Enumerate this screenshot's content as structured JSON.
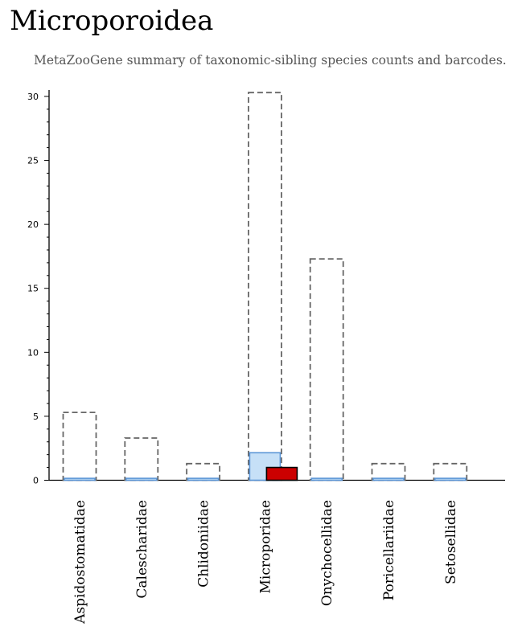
{
  "page": {
    "title": "Microporoidea",
    "subtitle": "MetaZooGene summary of taxonomic-sibling species counts and barcodes."
  },
  "colors": {
    "outline_dashed": "#666666",
    "light_bar_fill": "#c6e0f7",
    "light_bar_stroke": "#5b95d6",
    "highlight_bar_fill": "#cc0000",
    "highlight_bar_stroke": "#000000",
    "axis": "#000000"
  },
  "chart_data": {
    "type": "bar",
    "title": "",
    "xlabel": "",
    "ylabel": "",
    "ylim": [
      0,
      30.5
    ],
    "yticks": [
      0,
      5,
      10,
      15,
      20,
      25,
      30
    ],
    "grid": false,
    "categories": [
      "Aspidostomatidae",
      "Calescharidae",
      "Chlidoniidae",
      "Microporidae",
      "Onychocellidae",
      "Poricellariidae",
      "Setosellidae"
    ],
    "series": [
      {
        "style": "dashed-outline",
        "values": [
          5.3,
          3.3,
          1.3,
          30.3,
          17.3,
          1.3,
          1.3
        ]
      },
      {
        "style": "light-blue",
        "values": [
          0.15,
          0.15,
          0.15,
          2.15,
          0.15,
          0.15,
          0.15
        ]
      },
      {
        "style": "red-highlight",
        "values": [
          0,
          0,
          0,
          1,
          0,
          0,
          0
        ]
      }
    ]
  }
}
